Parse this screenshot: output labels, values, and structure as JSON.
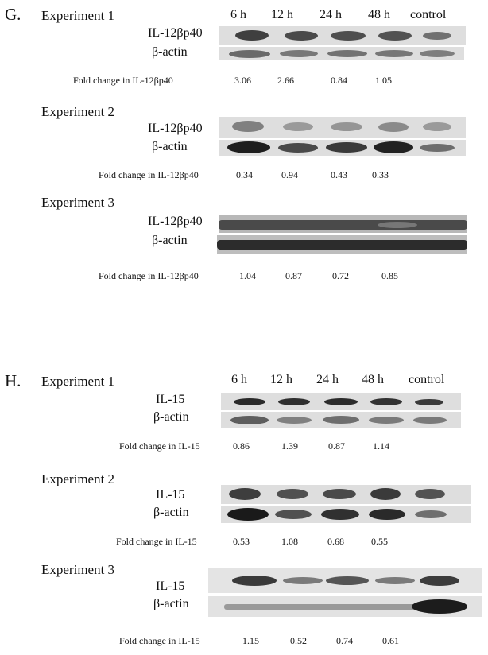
{
  "panels": {
    "G": {
      "letter": "G.",
      "lanes": [
        "6 h",
        "12 h",
        "24 h",
        "48 h",
        "control"
      ],
      "experiments": [
        {
          "title": "Experiment 1",
          "blot1": "IL-12βp40",
          "blot2": "β-actin",
          "fold_label": "Fold change in IL-12βp40",
          "values": [
            "3.06",
            "2.66",
            "0.84",
            "1.05"
          ]
        },
        {
          "title": "Experiment 2",
          "blot1": "IL-12βp40",
          "blot2": "β-actin",
          "fold_label": "Fold change in IL-12βp40",
          "values": [
            "0.34",
            "0.94",
            "0.43",
            "0.33"
          ]
        },
        {
          "title": "Experiment 3",
          "blot1": "IL-12βp40",
          "blot2": "β-actin",
          "fold_label": "Fold change in IL-12βp40",
          "values": [
            "1.04",
            "0.87",
            "0.72",
            "0.85"
          ]
        }
      ]
    },
    "H": {
      "letter": "H.",
      "lanes": [
        "6 h",
        "12 h",
        "24 h",
        "48 h",
        "control"
      ],
      "experiments": [
        {
          "title": "Experiment 1",
          "blot1": "IL-15",
          "blot2": "β-actin",
          "fold_label": "Fold change in IL-15",
          "values": [
            "0.86",
            "1.39",
            "0.87",
            "1.14"
          ]
        },
        {
          "title": "Experiment 2",
          "blot1": "IL-15",
          "blot2": "β-actin",
          "fold_label": "Fold change  in IL-15",
          "values": [
            "0.53",
            "1.08",
            "0.68",
            "0.55"
          ]
        },
        {
          "title": "Experiment 3",
          "blot1": "IL-15",
          "blot2": "β-actin",
          "fold_label": "Fold change in IL-15",
          "values": [
            "1.15",
            "0.52",
            "0.74",
            "0.61"
          ]
        }
      ]
    }
  }
}
